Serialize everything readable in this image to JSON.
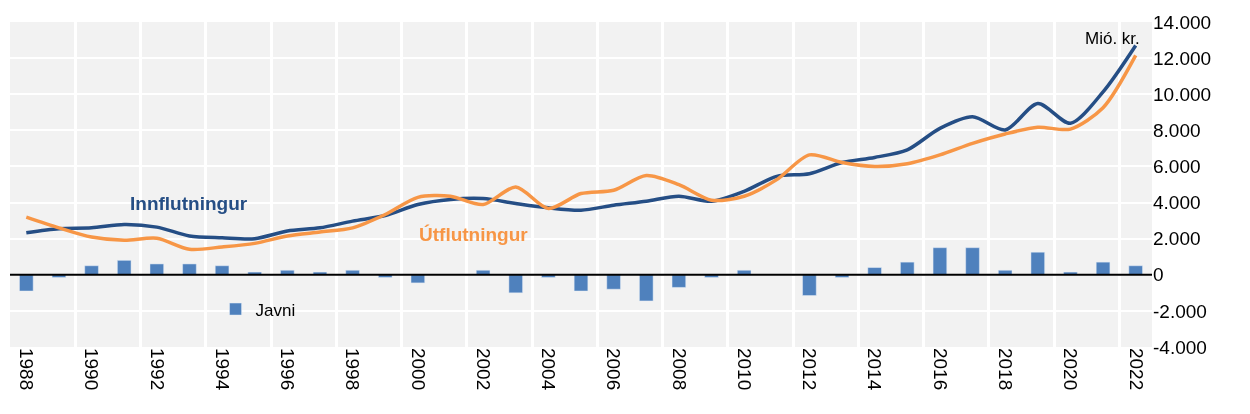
{
  "chart_data": {
    "type": "bar",
    "ylabel": "Mió. kr.",
    "categories": [
      "1988",
      null,
      "1990",
      null,
      "1992",
      null,
      "1994",
      null,
      "1996",
      null,
      "1998",
      null,
      "2000",
      null,
      "2002",
      null,
      "2004",
      null,
      "2006",
      null,
      "2008",
      null,
      "2010",
      null,
      "2012",
      null,
      "2014",
      null,
      "2016",
      null,
      "2018",
      null,
      "2020",
      null,
      "2022"
    ],
    "series": [
      {
        "name": "Javni",
        "color": "#4f81bd",
        "values": [
          -900,
          -150,
          500,
          800,
          600,
          600,
          500,
          150,
          250,
          150,
          250,
          -150,
          -450,
          null,
          250,
          -1000,
          -150,
          -900,
          -800,
          -1450,
          -700,
          -150,
          250,
          null,
          -1150,
          -150,
          400,
          700,
          1500,
          1500,
          250,
          1250,
          150,
          700,
          500
        ]
      },
      {
        "name": "Innflutningur",
        "type": "line",
        "color": "#254e85",
        "values": [
          2330,
          2550,
          2600,
          2790,
          2640,
          2150,
          2050,
          2000,
          2420,
          2600,
          2970,
          3280,
          3890,
          4170,
          4220,
          3950,
          3710,
          3580,
          3850,
          4070,
          4350,
          4070,
          4620,
          5450,
          5600,
          6220,
          6500,
          6920,
          8110,
          8750,
          8020,
          9490,
          8390,
          10130,
          12700
        ]
      },
      {
        "name": "Útflutningur",
        "type": "line",
        "color": "#f79646",
        "values": [
          3190,
          2600,
          2090,
          1910,
          2020,
          1410,
          1540,
          1740,
          2150,
          2370,
          2600,
          3340,
          4290,
          4350,
          3890,
          4860,
          3670,
          4500,
          4680,
          5500,
          4990,
          4130,
          4350,
          5270,
          6640,
          6220,
          6000,
          6150,
          6640,
          7280,
          7800,
          8170,
          8070,
          9250,
          12150
        ]
      }
    ],
    "ylim": [
      -4000,
      14000
    ],
    "yticks": [
      {
        "value": -4000,
        "label": "-4.000"
      },
      {
        "value": -2000,
        "label": "-2.000"
      },
      0,
      {
        "value": 2000,
        "label": "2.000"
      },
      {
        "value": 4000,
        "label": "4.000"
      },
      {
        "value": 6000,
        "label": "6.000"
      },
      {
        "value": 8000,
        "label": "8.000"
      },
      {
        "value": 10000,
        "label": "10.000"
      },
      {
        "value": 12000,
        "label": "12.000"
      },
      {
        "value": 14000,
        "label": "14.000"
      }
    ],
    "ref_lines": [
      {
        "axis": "y",
        "value": 0,
        "color": "#000000"
      }
    ],
    "grid": true,
    "legend": "bottom left",
    "marker": "none",
    "line_style": "solid"
  }
}
